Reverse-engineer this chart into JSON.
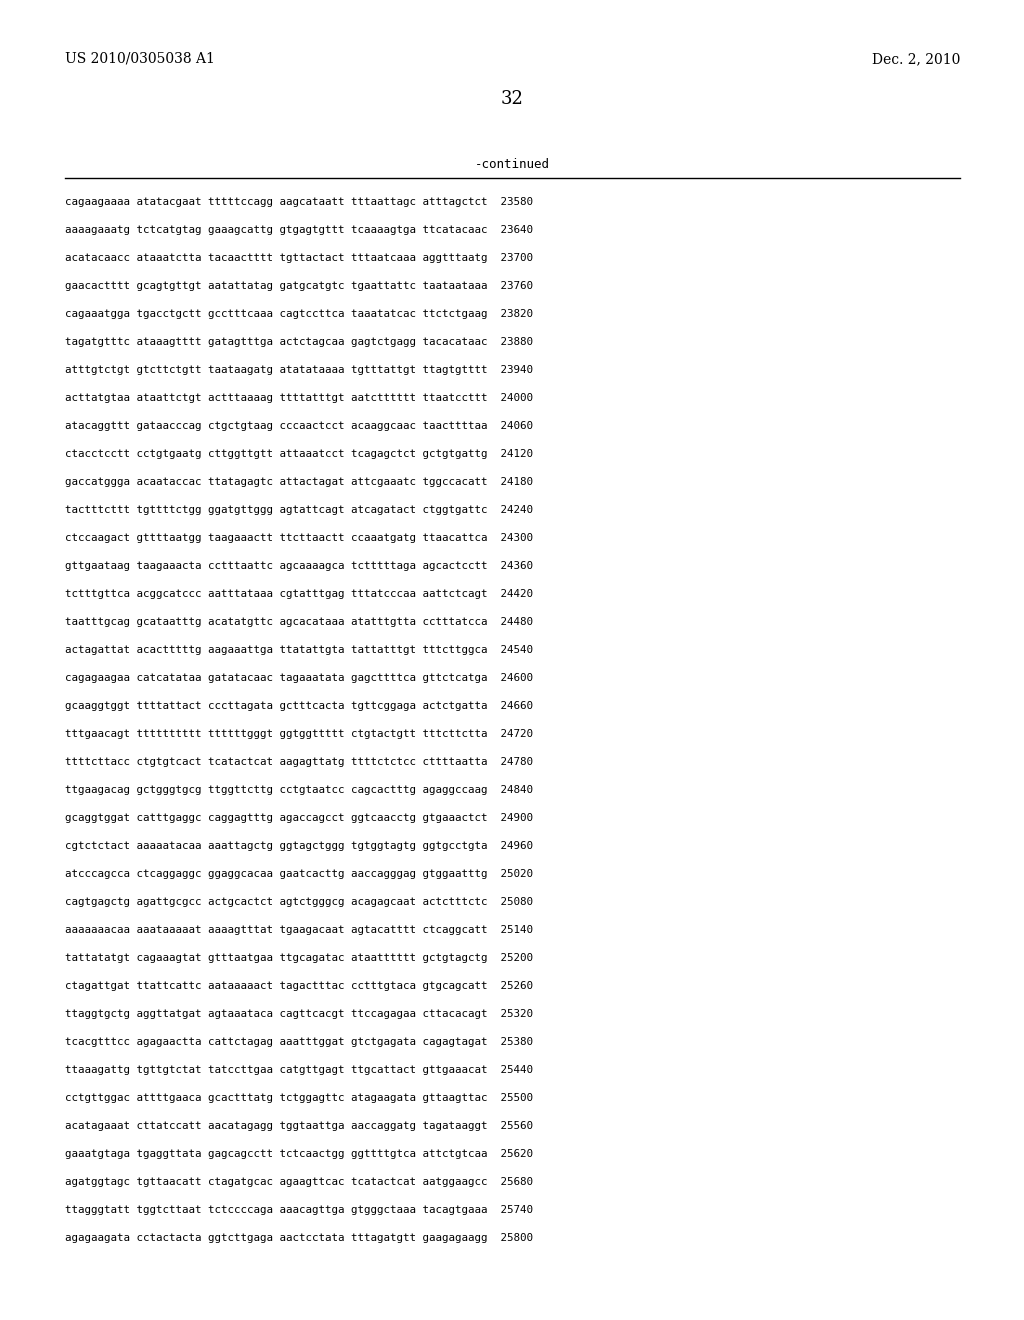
{
  "patent_number": "US 2010/0305038 A1",
  "date": "Dec. 2, 2010",
  "page_number": "32",
  "continued_label": "-continued",
  "background_color": "#ffffff",
  "text_color": "#000000",
  "sequence_lines": [
    "cagaagaaaa atatacgaat tttttccagg aagcataatt tttaattagc atttagctct  23580",
    "aaaagaaatg tctcatgtag gaaagcattg gtgagtgttt tcaaaagtga ttcatacaac  23640",
    "acatacaacc ataaatctta tacaactttt tgttactact tttaatcaaa aggtttaatg  23700",
    "gaacactttt gcagtgttgt aatattatag gatgcatgtc tgaattattc taataataaa  23760",
    "cagaaatgga tgacctgctt gcctttcaaa cagtccttca taaatatcac ttctctgaag  23820",
    "tagatgtttc ataaagtttt gatagtttga actctagcaa gagtctgagg tacacataac  23880",
    "atttgtctgt gtcttctgtt taataagatg atatataaaa tgtttattgt ttagtgtttt  23940",
    "acttatgtaa ataattctgt actttaaaag ttttatttgt aatctttttt ttaatccttt  24000",
    "atacaggttt gataacccag ctgctgtaag cccaactcct acaaggcaac taacttttaa  24060",
    "ctacctcctt cctgtgaatg cttggttgtt attaaatcct tcagagctct gctgtgattg  24120",
    "gaccatggga acaataccac ttatagagtc attactagat attcgaaatc tggccacatt  24180",
    "tactttcttt tgttttctgg ggatgttggg agtattcagt atcagatact ctggtgattc  24240",
    "ctccaagact gttttaatgg taagaaactt ttcttaactt ccaaatgatg ttaacattca  24300",
    "gttgaataag taagaaacta cctttaattc agcaaaagca tctttttaga agcactcctt  24360",
    "tctttgttca acggcatccc aatttataaa cgtatttgag tttatcccaa aattctcagt  24420",
    "taatttgcag gcataatttg acatatgttc agcacataaa atatttgtta cctttatcca  24480",
    "actagattat acactttttg aagaaattga ttatattgta tattatttgt tttcttggca  24540",
    "cagagaagaa catcatataa gatatacaac tagaaatata gagcttttca gttctcatga  24600",
    "gcaaggtggt ttttattact cccttagata gctttcacta tgttcggaga actctgatta  24660",
    "tttgaacagt tttttttttt ttttttgggt ggtggttttt ctgtactgtt tttcttctta  24720",
    "ttttcttacc ctgtgtcact tcatactcat aagagttatg ttttctctcc cttttaatta  24780",
    "ttgaagacag gctgggtgcg ttggttcttg cctgtaatcc cagcactttg agaggccaag  24840",
    "gcaggtggat catttgaggc caggagtttg agaccagcct ggtcaacctg gtgaaactct  24900",
    "cgtctctact aaaaatacaa aaattagctg ggtagctggg tgtggtagtg ggtgcctgta  24960",
    "atcccagcca ctcaggaggc ggaggcacaa gaatcacttg aaccagggag gtggaatttg  25020",
    "cagtgagctg agattgcgcc actgcactct agtctgggcg acagagcaat actctttctc  25080",
    "aaaaaaacaa aaataaaaat aaaagtttat tgaagacaat agtacatttt ctcaggcatt  25140",
    "tattatatgt cagaaagtat gtttaatgaa ttgcagatac ataatttttt gctgtagctg  25200",
    "ctagattgat ttattcattc aataaaaact tagactttac cctttgtaca gtgcagcatt  25260",
    "ttaggtgctg aggttatgat agtaaataca cagttcacgt ttccagagaa cttacacagt  25320",
    "tcacgtttcc agagaactta cattctagag aaatttggat gtctgagata cagagtagat  25380",
    "ttaaagattg tgttgtctat tatccttgaa catgttgagt ttgcattact gttgaaacat  25440",
    "cctgttggac attttgaaca gcactttatg tctggagttc atagaagata gttaagttac  25500",
    "acatagaaat cttatccatt aacatagagg tggtaattga aaccaggatg tagataaggt  25560",
    "gaaatgtaga tgaggttata gagcagcctt tctcaactgg ggttttgtca attctgtcaa  25620",
    "agatggtagc tgttaacatt ctagatgcac agaagttcac tcatactcat aatggaagcc  25680",
    "ttagggtatt tggtcttaat tctccccaga aaacagttga gtgggctaaa tacagtgaaa  25740",
    "agagaagata cctactacta ggtcttgaga aactcctata tttagatgtt gaagagaagg  25800"
  ]
}
